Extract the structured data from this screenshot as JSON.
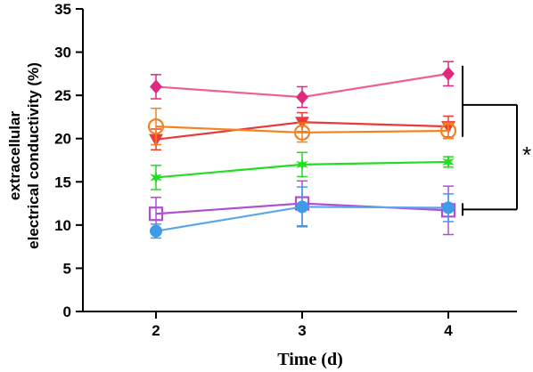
{
  "chart_data": {
    "type": "line",
    "x": [
      2,
      3,
      4
    ],
    "xlabel": "Time (d)",
    "ylabel_lines": [
      "extracellular",
      "electrical conductivity (%)"
    ],
    "ylim": [
      0,
      35
    ],
    "yticks": [
      0,
      5,
      10,
      15,
      20,
      25,
      30,
      35
    ],
    "xticks": [
      2,
      3,
      4
    ],
    "grid": false,
    "series": [
      {
        "color": "#e0287f",
        "line_color": "#ef5f90",
        "marker": "diamond",
        "values": [
          26.0,
          24.8,
          27.5
        ],
        "errors": [
          1.4,
          1.2,
          1.4
        ]
      },
      {
        "color": "#ee3a3a",
        "line_color": "#e83a3a",
        "marker": "triangle-down",
        "values": [
          19.9,
          21.9,
          21.4
        ],
        "errors": [
          1.2,
          1.1,
          1.2
        ]
      },
      {
        "color": "#f58220",
        "line_color": "#f58220",
        "marker": "circle-open",
        "values": [
          21.4,
          20.7,
          20.9
        ],
        "errors": [
          2.1,
          1.1,
          0.9
        ]
      },
      {
        "color": "#22dd22",
        "line_color": "#22dd22",
        "marker": "star",
        "values": [
          15.5,
          17.0,
          17.3
        ],
        "errors": [
          1.4,
          1.4,
          0.6
        ]
      },
      {
        "color": "#b04fd0",
        "line_color": "#b04fd0",
        "marker": "square-open",
        "values": [
          11.3,
          12.5,
          11.7
        ],
        "errors": [
          1.9,
          2.6,
          2.8
        ]
      },
      {
        "color": "#3f9be8",
        "line_color": "#5aa6ea",
        "marker": "circle",
        "values": [
          9.3,
          12.1,
          12.0
        ],
        "errors": [
          0.8,
          2.3,
          1.6
        ]
      }
    ],
    "annotations": [
      {
        "text": "*",
        "type": "significance-bracket",
        "from_y": 27.5,
        "to_y": 11.7
      }
    ]
  }
}
